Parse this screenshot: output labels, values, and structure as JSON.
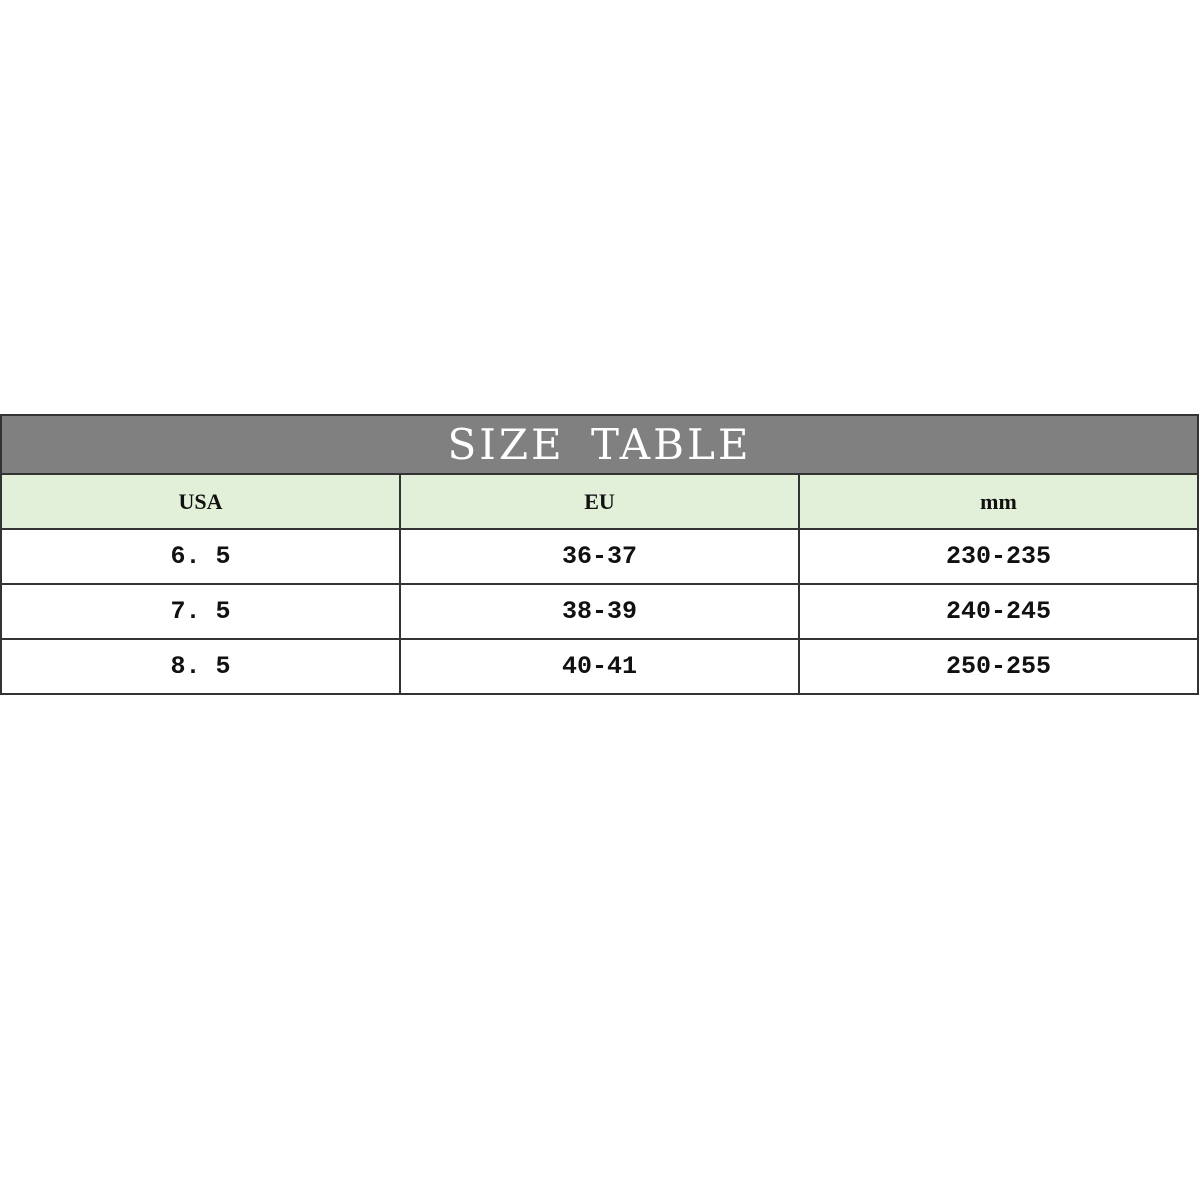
{
  "title": "SIZE TABLE",
  "columns": [
    "USA",
    "EU",
    "mm"
  ],
  "rows": [
    [
      "6. 5",
      "36-37",
      "230-235"
    ],
    [
      "7. 5",
      "38-39",
      "240-245"
    ],
    [
      "8. 5",
      "40-41",
      "250-255"
    ]
  ],
  "colors": {
    "title_bg": "#808080",
    "header_bg": "#e2f0d9"
  }
}
